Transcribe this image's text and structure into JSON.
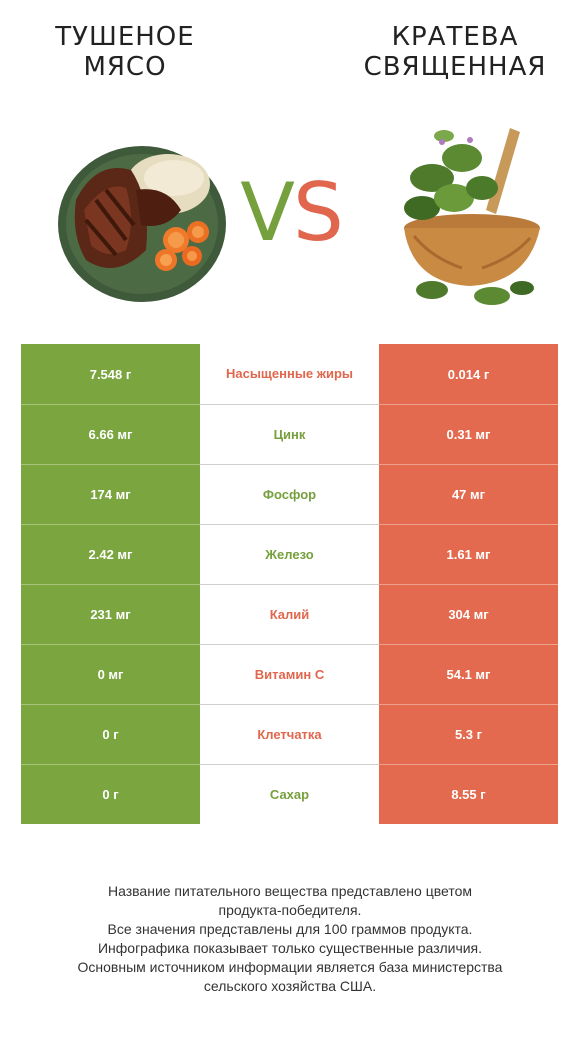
{
  "header": {
    "left_title": [
      "ТУШЕНОЕ",
      "МЯСО"
    ],
    "right_title": [
      "КРАТЕВА",
      "СВЯЩЕННАЯ"
    ],
    "vs_v": "V",
    "vs_s": "S"
  },
  "colors": {
    "left_winner": "#7aa53f",
    "right_winner": "#e36a4f"
  },
  "rows": [
    {
      "left": "7.548 г",
      "nutrient": "Насыщенные жиры",
      "right": "0.014 г",
      "winner": "red"
    },
    {
      "left": "6.66 мг",
      "nutrient": "Цинк",
      "right": "0.31 мг",
      "winner": "green"
    },
    {
      "left": "174 мг",
      "nutrient": "Фосфор",
      "right": "47 мг",
      "winner": "green"
    },
    {
      "left": "2.42 мг",
      "nutrient": "Железо",
      "right": "1.61 мг",
      "winner": "green"
    },
    {
      "left": "231 мг",
      "nutrient": "Калий",
      "right": "304 мг",
      "winner": "red"
    },
    {
      "left": "0 мг",
      "nutrient": "Витамин C",
      "right": "54.1 мг",
      "winner": "red"
    },
    {
      "left": "0 г",
      "nutrient": "Клетчатка",
      "right": "5.3 г",
      "winner": "red"
    },
    {
      "left": "0 г",
      "nutrient": "Сахар",
      "right": "8.55 г",
      "winner": "green"
    }
  ],
  "footer": [
    "Название питательного вещества представлено цветом",
    "продукта-победителя.",
    "Все значения представлены для 100 граммов продукта.",
    "Инфографика показывает только существенные различия.",
    "Основным источником информации является база министерства",
    "сельского хозяйства США."
  ]
}
